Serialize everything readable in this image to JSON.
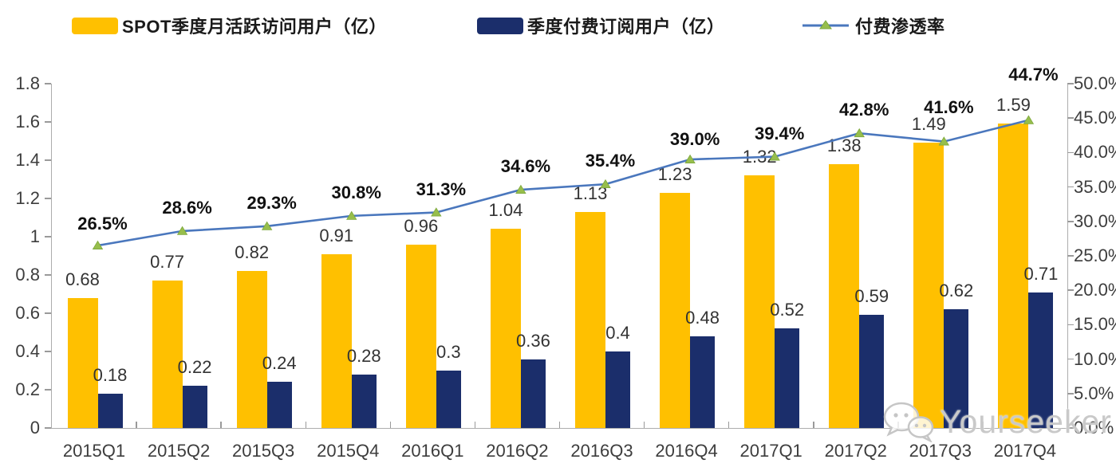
{
  "legend": {
    "items": [
      {
        "label": "SPOT季度月活跃访问用户（亿）",
        "color": "#FFC000",
        "kind": "bar"
      },
      {
        "label": "季度付费订阅用户（亿）",
        "color": "#1B2E6B",
        "kind": "bar"
      },
      {
        "label": "付费渗透率",
        "color": "#4A77BD",
        "marker_color": "#97BE4C",
        "kind": "line"
      }
    ]
  },
  "chart_data": {
    "type": "bar+line combo",
    "categories": [
      "2015Q1",
      "2015Q2",
      "2015Q3",
      "2015Q4",
      "2016Q1",
      "2016Q2",
      "2016Q3",
      "2016Q4",
      "2017Q1",
      "2017Q2",
      "2017Q3",
      "2017Q4"
    ],
    "series": [
      {
        "name": "SPOT季度月活跃访问用户（亿）",
        "type": "bar",
        "axis": "left",
        "color": "#FFC000",
        "values": [
          0.68,
          0.77,
          0.82,
          0.91,
          0.96,
          1.04,
          1.13,
          1.23,
          1.32,
          1.38,
          1.49,
          1.59
        ],
        "labels": [
          "0.68",
          "0.77",
          "0.82",
          "0.91",
          "0.96",
          "1.04",
          "1.13",
          "1.23",
          "1.32",
          "1.38",
          "1.49",
          "1.59"
        ]
      },
      {
        "name": "季度付费订阅用户（亿）",
        "type": "bar",
        "axis": "left",
        "color": "#1B2E6B",
        "values": [
          0.18,
          0.22,
          0.24,
          0.28,
          0.3,
          0.36,
          0.4,
          0.48,
          0.52,
          0.59,
          0.62,
          0.71
        ],
        "labels": [
          "0.18",
          "0.22",
          "0.24",
          "0.28",
          "0.3",
          "0.36",
          "0.4",
          "0.48",
          "0.52",
          "0.59",
          "0.62",
          "0.71"
        ]
      },
      {
        "name": "付费渗透率",
        "type": "line",
        "axis": "right",
        "color": "#4A77BD",
        "marker": "triangle-up",
        "marker_color": "#97BE4C",
        "values_pct": [
          26.5,
          28.6,
          29.3,
          30.8,
          31.3,
          34.6,
          35.4,
          39.0,
          39.4,
          42.8,
          41.6,
          44.7
        ],
        "labels": [
          "26.5%",
          "28.6%",
          "29.3%",
          "30.8%",
          "31.3%",
          "34.6%",
          "35.4%",
          "39.0%",
          "39.4%",
          "42.8%",
          "41.6%",
          "44.7%"
        ]
      }
    ],
    "left_axis": {
      "min": 0,
      "max": 1.8,
      "ticks": [
        "0",
        "0.2",
        "0.4",
        "0.6",
        "0.8",
        "1",
        "1.2",
        "1.4",
        "1.6",
        "1.8"
      ]
    },
    "right_axis": {
      "min_pct": 0,
      "max_pct": 50,
      "ticks": [
        "0.0%",
        "5.0%",
        "10.0%",
        "15.0%",
        "20.0%",
        "25.0%",
        "30.0%",
        "35.0%",
        "40.0%",
        "45.0%",
        "50.0%"
      ]
    },
    "grid": "off",
    "legend_position": "top"
  },
  "watermark": {
    "text": "Yourseeker",
    "icon": "wechat-icon"
  }
}
